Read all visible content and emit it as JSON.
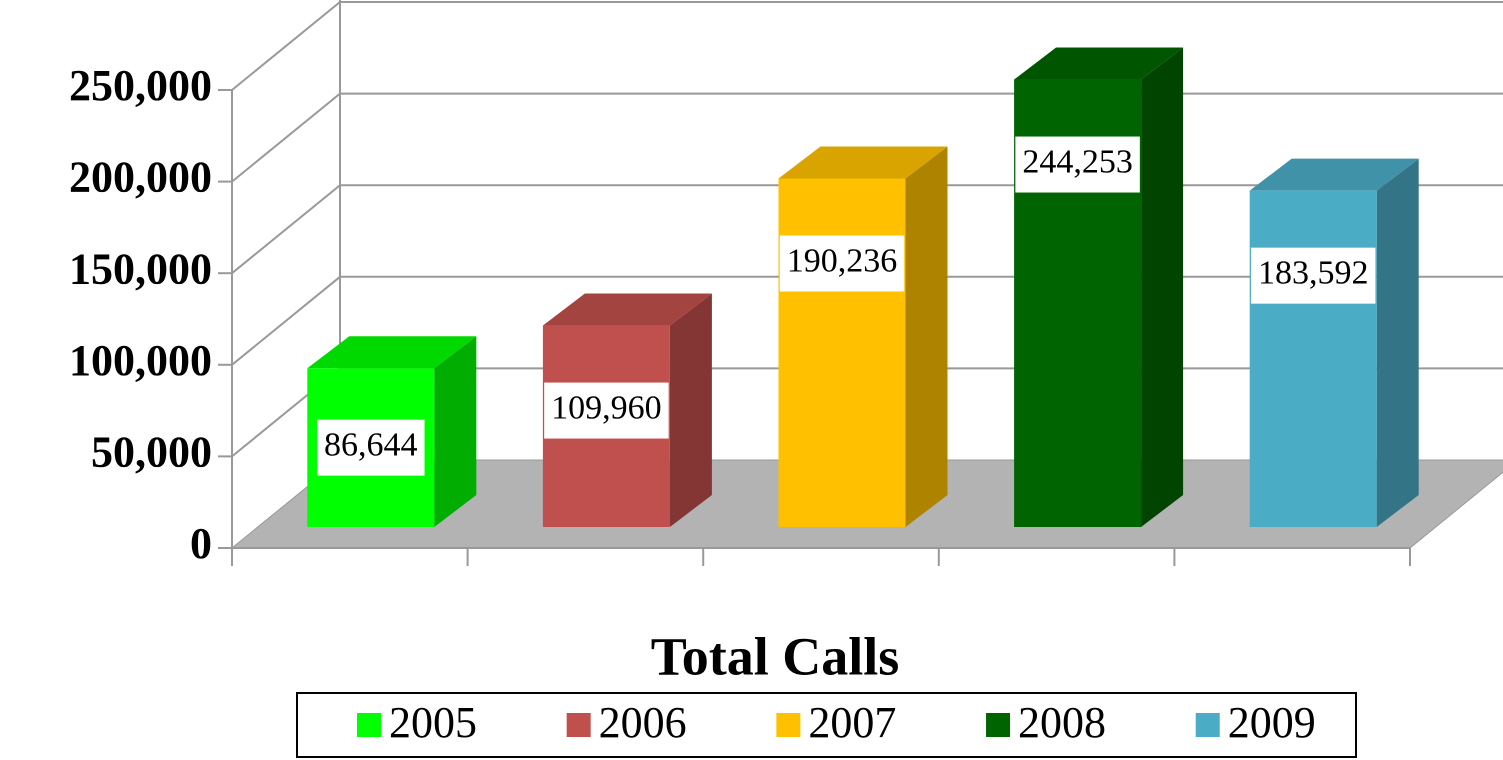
{
  "chart_data": {
    "type": "bar3d",
    "categories": [
      "Total Calls"
    ],
    "series": [
      {
        "name": "2005",
        "color": "#00ff00",
        "values": [
          86644
        ],
        "value_labels": [
          "86,644"
        ]
      },
      {
        "name": "2006",
        "color": "#c0504d",
        "values": [
          109960
        ],
        "value_labels": [
          "109,960"
        ]
      },
      {
        "name": "2007",
        "color": "#ffc000",
        "values": [
          190236
        ],
        "value_labels": [
          "190,236"
        ]
      },
      {
        "name": "2008",
        "color": "#006400",
        "values": [
          244253
        ],
        "value_labels": [
          "244,253"
        ]
      },
      {
        "name": "2009",
        "color": "#4bacc6",
        "values": [
          183592
        ],
        "value_labels": [
          "183,592"
        ]
      }
    ],
    "ylim": [
      0,
      250000
    ],
    "yticks": [
      0,
      {
        "value": 50000,
        "label": "50,000"
      },
      {
        "value": 100000,
        "label": "100,000"
      },
      {
        "value": 150000,
        "label": "150,000"
      },
      {
        "value": 200000,
        "label": "200,000"
      },
      {
        "value": 250000,
        "label": "250,000"
      }
    ],
    "grid": true,
    "legend": "bottom"
  }
}
